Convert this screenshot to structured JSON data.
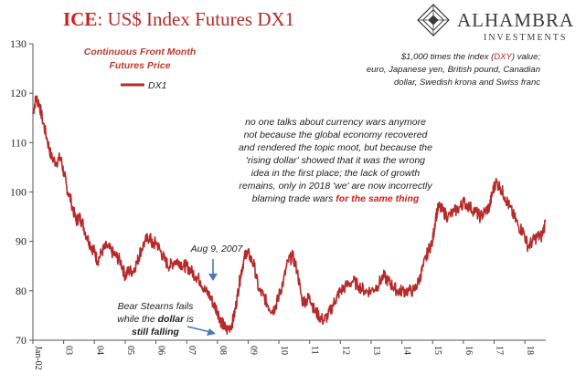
{
  "header": {
    "title_prefix": "ICE",
    "title_rest": ": US$ Index Futures DX1",
    "logo_main": "ALHAMBRA",
    "logo_sub": "INVESTMENTS"
  },
  "legend": {
    "heading_line1": "Continuous  Front Month",
    "heading_line2": "Futures Price",
    "series_label": "DX1"
  },
  "annotations": {
    "top_right": [
      "$1,000 times the index (",
      "DXY",
      ") value;",
      "euro, Japanese yen, British pound, Canadian",
      "dollar, Swedish krona and Swiss franc"
    ],
    "commentary": [
      "no one talks about currency wars anymore",
      "not because the global economy recovered",
      "and rendered the topic moot, but because the",
      "'rising dollar' showed that it was the wrong",
      "idea in the first place; the lack of growth",
      "remains, only in 2018 'we' are now incorrectly",
      "blaming trade wars "
    ],
    "commentary_emph": "for the same thing",
    "aug": "Aug 9, 2007",
    "bear_line1": "Bear Stearns fails",
    "bear_line2_a": "while the ",
    "bear_line2_b": "dollar",
    "bear_line2_c": " is",
    "bear_line3": "still falling"
  },
  "colors": {
    "series": "#b52a2a",
    "title_red": "#cc1f1f",
    "axis": "#555555",
    "arrow": "#4a78b8"
  },
  "chart_data": {
    "type": "line",
    "title": "ICE: US$ Index Futures DX1",
    "xlabel": "",
    "ylabel": "",
    "ylim": [
      70,
      130
    ],
    "yticks": [
      70,
      80,
      90,
      100,
      110,
      120,
      130
    ],
    "xlim": [
      "2002-01",
      "2018-08"
    ],
    "xtick_labels": [
      "Jan-02",
      "03",
      "04",
      "05",
      "06",
      "07",
      "08",
      "09",
      "10",
      "11",
      "12",
      "13",
      "14",
      "15",
      "16",
      "17",
      "18"
    ],
    "x_ticks": [
      2002.0,
      2003.0,
      2004.0,
      2005.0,
      2006.0,
      2007.0,
      2008.0,
      2009.0,
      2010.0,
      2011.0,
      2012.0,
      2013.0,
      2014.0,
      2015.0,
      2016.0,
      2017.0,
      2018.0
    ],
    "grid": false,
    "legend": "top-left",
    "series": [
      {
        "name": "DX1",
        "x": [
          2002.0,
          2002.1,
          2002.2,
          2002.3,
          2002.45,
          2002.6,
          2002.75,
          2002.9,
          2003.0,
          2003.1,
          2003.25,
          2003.4,
          2003.5,
          2003.6,
          2003.75,
          2003.9,
          2004.0,
          2004.1,
          2004.25,
          2004.4,
          2004.55,
          2004.7,
          2004.85,
          2005.0,
          2005.1,
          2005.25,
          2005.4,
          2005.5,
          2005.65,
          2005.8,
          2005.9,
          2006.0,
          2006.15,
          2006.3,
          2006.45,
          2006.6,
          2006.75,
          2006.9,
          2007.0,
          2007.15,
          2007.3,
          2007.45,
          2007.6,
          2007.75,
          2007.9,
          2008.0,
          2008.1,
          2008.2,
          2008.3,
          2008.45,
          2008.55,
          2008.65,
          2008.75,
          2008.85,
          2008.95,
          2009.05,
          2009.2,
          2009.35,
          2009.5,
          2009.65,
          2009.8,
          2009.9,
          2010.0,
          2010.15,
          2010.3,
          2010.45,
          2010.6,
          2010.75,
          2010.9,
          2011.0,
          2011.15,
          2011.3,
          2011.45,
          2011.6,
          2011.75,
          2011.9,
          2012.0,
          2012.2,
          2012.4,
          2012.6,
          2012.8,
          2013.0,
          2013.2,
          2013.4,
          2013.55,
          2013.7,
          2013.85,
          2014.0,
          2014.2,
          2014.4,
          2014.55,
          2014.7,
          2014.85,
          2015.0,
          2015.1,
          2015.2,
          2015.35,
          2015.5,
          2015.7,
          2015.9,
          2016.0,
          2016.2,
          2016.4,
          2016.55,
          2016.7,
          2016.85,
          2016.95,
          2017.05,
          2017.2,
          2017.35,
          2017.5,
          2017.65,
          2017.8,
          2017.95,
          2018.1,
          2018.25,
          2018.4,
          2018.55,
          2018.67
        ],
        "values": [
          116,
          119,
          118,
          115,
          111,
          107,
          106,
          107,
          104,
          101,
          98,
          94,
          95,
          94,
          91,
          89,
          88,
          86,
          88,
          89,
          88,
          87,
          86,
          83,
          84,
          84,
          86,
          88,
          90,
          91,
          89,
          90,
          88,
          86,
          85,
          86,
          86,
          85,
          85,
          84,
          83,
          82,
          80,
          79,
          77,
          76,
          74,
          73,
          72,
          73,
          75,
          79,
          83,
          86,
          88,
          87,
          85,
          80,
          79,
          77,
          76,
          77,
          79,
          82,
          86,
          87,
          84,
          78,
          78,
          79,
          76,
          75,
          74,
          75,
          77,
          79,
          80,
          81,
          82,
          81,
          80,
          80,
          81,
          83,
          82,
          81,
          80,
          80,
          80,
          80,
          82,
          85,
          88,
          90,
          95,
          97,
          96,
          95,
          96,
          97,
          98,
          97,
          96,
          95,
          96,
          97,
          100,
          102,
          101,
          99,
          97,
          95,
          93,
          92,
          89,
          90,
          91,
          91,
          94
        ]
      }
    ]
  }
}
